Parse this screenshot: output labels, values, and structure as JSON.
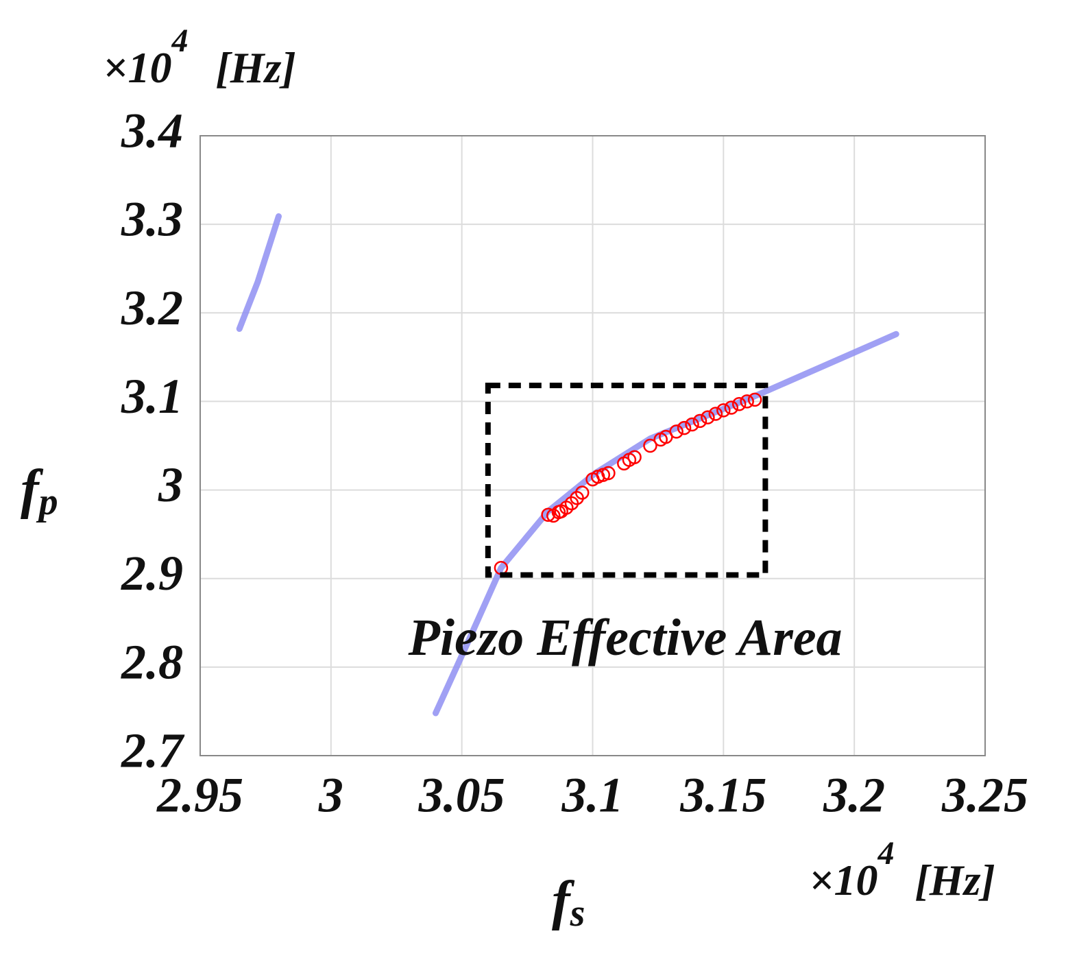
{
  "chart_data": {
    "type": "scatter",
    "xlabel": {
      "text": "f",
      "subscript": "s"
    },
    "ylabel": {
      "text": "f",
      "subscript": "p"
    },
    "x_multiplier": {
      "base": "×10",
      "exponent": "4",
      "unit": "[Hz]"
    },
    "y_multiplier": {
      "base": "×10",
      "exponent": "4",
      "unit": "[Hz]"
    },
    "annotation": "Piezo Effective Area",
    "box": {
      "x": [
        3.06,
        3.166
      ],
      "y": [
        2.904,
        3.118
      ]
    },
    "xlim": [
      2.95,
      3.25
    ],
    "xticks": [
      2.95,
      3,
      3.05,
      3.1,
      3.15,
      3.2,
      3.25
    ],
    "ylim": [
      2.7,
      3.4
    ],
    "yticks": [
      2.7,
      2.8,
      2.9,
      3,
      3.1,
      3.2,
      3.3,
      3.4
    ],
    "grid": true,
    "series": [
      {
        "color": "#8f8ff2",
        "line": true,
        "x": [
          2.965,
          2.972,
          2.98,
          null,
          3.04,
          3.052,
          3.065,
          3.083,
          3.101,
          3.122,
          3.162,
          3.216
        ],
        "values": [
          3.182,
          3.235,
          3.309,
          null,
          2.748,
          2.826,
          2.912,
          2.976,
          3.019,
          3.058,
          3.106,
          3.176
        ]
      },
      {
        "color": "#ff0000",
        "line": false,
        "x": [
          3.065,
          3.083,
          3.085,
          3.087,
          3.088,
          3.09,
          3.092,
          3.094,
          3.096,
          3.1,
          3.102,
          3.104,
          3.106,
          3.112,
          3.114,
          3.116,
          3.122,
          3.126,
          3.128,
          3.132,
          3.135,
          3.138,
          3.141,
          3.144,
          3.147,
          3.15,
          3.153,
          3.156,
          3.159,
          3.162
        ],
        "values": [
          2.912,
          2.972,
          2.971,
          2.975,
          2.976,
          2.98,
          2.985,
          2.991,
          2.997,
          3.012,
          3.015,
          3.017,
          3.019,
          3.03,
          3.034,
          3.037,
          3.05,
          3.057,
          3.06,
          3.066,
          3.07,
          3.074,
          3.078,
          3.082,
          3.086,
          3.09,
          3.093,
          3.097,
          3.1,
          3.102
        ]
      }
    ]
  }
}
